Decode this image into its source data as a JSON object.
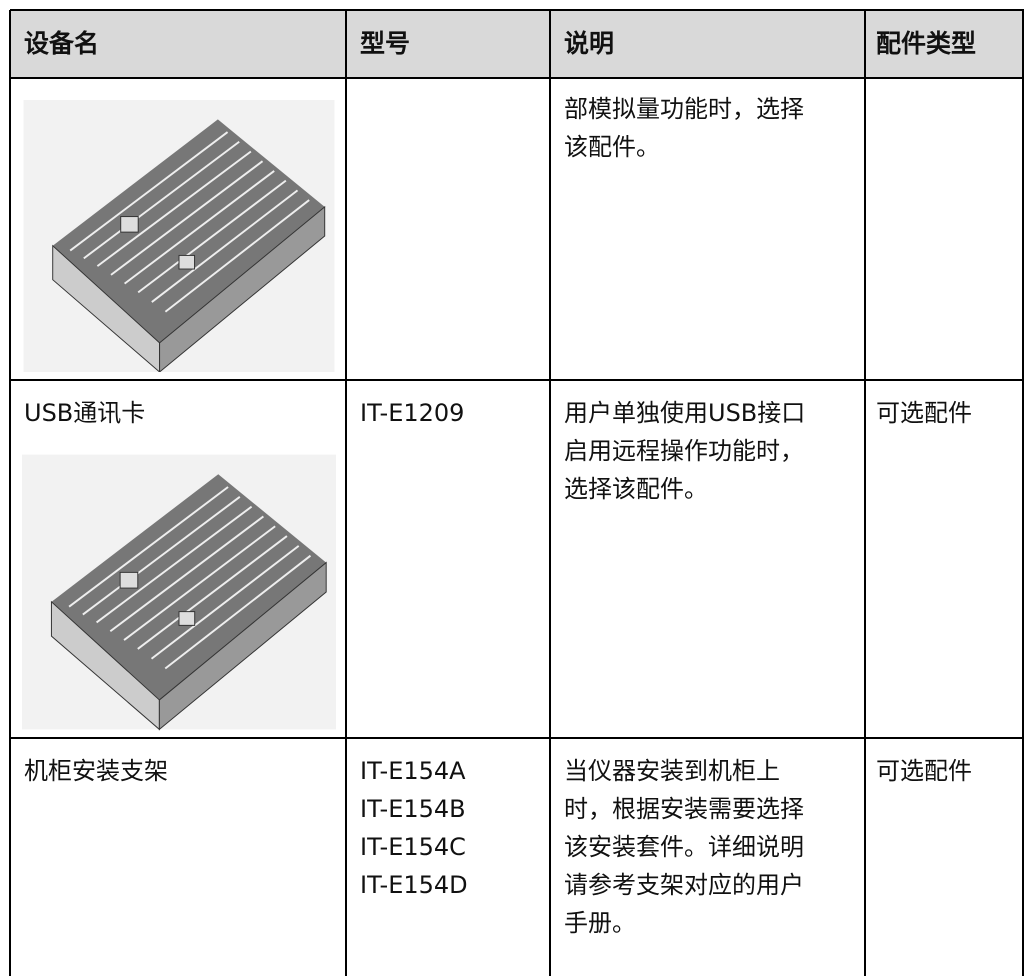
{
  "table": {
    "header": [
      "设备名",
      "型号",
      "说明",
      "配件类型"
    ],
    "rows": [
      {
        "description": [
          "部模拟量功能时，选择",
          "该配件。"
        ]
      },
      {
        "name": "USB通讯卡",
        "model": [
          "IT-E1209"
        ],
        "description": [
          "用户单独使用USB接口",
          "启用远程操作功能时，",
          "选择该配件。"
        ],
        "type": "可选配件"
      },
      {
        "name": "机柜安装支架",
        "model": [
          "IT-E154A",
          "IT-E154B",
          "IT-E154C",
          "IT-E154D"
        ],
        "description": [
          "当仪器安装到机柜上",
          "时，根据安装需要选择",
          "该安装套件。详细说明",
          "请参考支架对应的用户",
          "手册。"
        ],
        "type": "可选配件"
      }
    ]
  }
}
